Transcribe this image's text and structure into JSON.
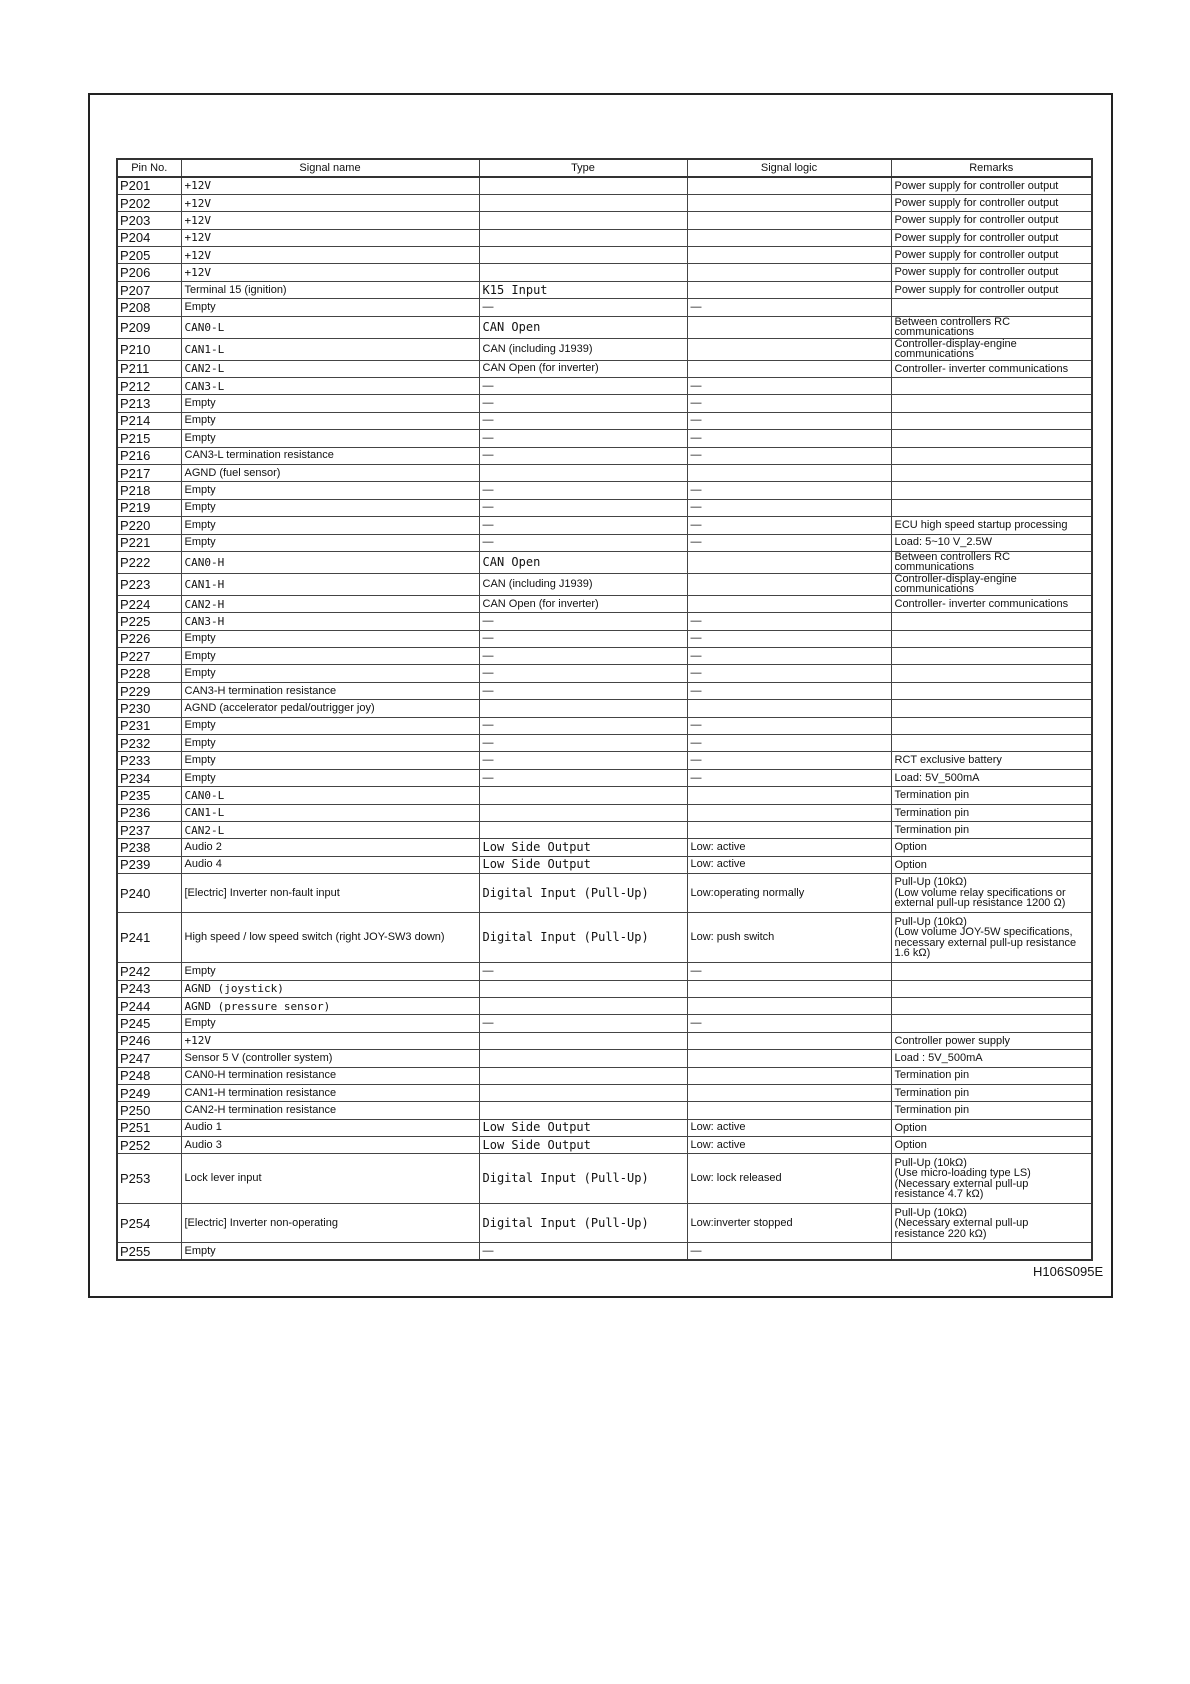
{
  "table": {
    "headers": [
      "Pin No.",
      "Signal name",
      "Type",
      "Signal logic",
      "Remarks"
    ],
    "rows": [
      [
        "P201",
        "+12V",
        "",
        "",
        "Power supply for controller output"
      ],
      [
        "P202",
        "+12V",
        "",
        "",
        "Power supply for controller output"
      ],
      [
        "P203",
        "+12V",
        "",
        "",
        "Power supply for controller output"
      ],
      [
        "P204",
        "+12V",
        "",
        "",
        "Power supply for controller output"
      ],
      [
        "P205",
        "+12V",
        "",
        "",
        "Power supply for controller output"
      ],
      [
        "P206",
        "+12V",
        "",
        "",
        "Power supply for controller output"
      ],
      [
        "P207",
        "Terminal 15 (ignition)",
        "K15 Input",
        "",
        "Power supply for controller output"
      ],
      [
        "P208",
        "Empty",
        "—",
        "—",
        ""
      ],
      [
        "P209",
        "CAN0-L",
        "CAN Open",
        "",
        "Between controllers RC communications"
      ],
      [
        "P210",
        "CAN1-L",
        "CAN (including J1939)",
        "",
        "Controller-display-engine communications"
      ],
      [
        "P211",
        "CAN2-L",
        "CAN Open (for inverter)",
        "",
        "Controller- inverter communications"
      ],
      [
        "P212",
        "CAN3-L",
        "—",
        "—",
        ""
      ],
      [
        "P213",
        "Empty",
        "—",
        "—",
        ""
      ],
      [
        "P214",
        "Empty",
        "—",
        "—",
        ""
      ],
      [
        "P215",
        "Empty",
        "—",
        "—",
        ""
      ],
      [
        "P216",
        "CAN3-L termination resistance",
        "—",
        "—",
        ""
      ],
      [
        "P217",
        "AGND (fuel sensor)",
        "",
        "",
        ""
      ],
      [
        "P218",
        "Empty",
        "—",
        "—",
        ""
      ],
      [
        "P219",
        "Empty",
        "—",
        "—",
        ""
      ],
      [
        "P220",
        "Empty",
        "—",
        "—",
        "ECU high speed startup processing"
      ],
      [
        "P221",
        "Empty",
        "—",
        "—",
        "Load: 5~10 V_2.5W"
      ],
      [
        "P222",
        "CAN0-H",
        "CAN Open",
        "",
        "Between controllers RC communications"
      ],
      [
        "P223",
        "CAN1-H",
        "CAN (including J1939)",
        "",
        "Controller-display-engine communications"
      ],
      [
        "P224",
        "CAN2-H",
        "CAN Open (for inverter)",
        "",
        "Controller- inverter communications"
      ],
      [
        "P225",
        "CAN3-H",
        "—",
        "—",
        ""
      ],
      [
        "P226",
        "Empty",
        "—",
        "—",
        ""
      ],
      [
        "P227",
        "Empty",
        "—",
        "—",
        ""
      ],
      [
        "P228",
        "Empty",
        "—",
        "—",
        ""
      ],
      [
        "P229",
        "CAN3-H termination resistance",
        "—",
        "—",
        ""
      ],
      [
        "P230",
        "AGND (accelerator pedal/outrigger joy)",
        "",
        "",
        ""
      ],
      [
        "P231",
        "Empty",
        "—",
        "—",
        ""
      ],
      [
        "P232",
        "Empty",
        "—",
        "—",
        ""
      ],
      [
        "P233",
        "Empty",
        "—",
        "—",
        "RCT exclusive battery"
      ],
      [
        "P234",
        "Empty",
        "—",
        "—",
        "Load: 5V_500mA"
      ],
      [
        "P235",
        "CAN0-L",
        "",
        "",
        "Termination pin"
      ],
      [
        "P236",
        "CAN1-L",
        "",
        "",
        "Termination pin"
      ],
      [
        "P237",
        "CAN2-L",
        "",
        "",
        "Termination pin"
      ],
      [
        "P238",
        "Audio 2",
        "Low Side Output",
        "Low: active",
        "Option"
      ],
      [
        "P239",
        "Audio 4",
        "Low Side Output",
        "Low: active",
        "Option"
      ],
      [
        "P240",
        "[Electric] Inverter non-fault input",
        "Digital Input (Pull-Up)",
        "Low:operating normally",
        "Pull-Up (10kΩ)\n(Low volume relay specifications or\nexternal pull-up resistance 1200 Ω)"
      ],
      [
        "P241",
        "High speed / low speed switch (right JOY-SW3 down)",
        "Digital Input (Pull-Up)",
        "Low: push switch",
        "Pull-Up (10kΩ)\n(Low volume JOY-5W specifications,\nnecessary external pull-up resistance\n1.6 kΩ)"
      ],
      [
        "P242",
        "Empty",
        "—",
        "—",
        ""
      ],
      [
        "P243",
        "AGND (joystick)",
        "",
        "",
        ""
      ],
      [
        "P244",
        "AGND (pressure sensor)",
        "",
        "",
        ""
      ],
      [
        "P245",
        "Empty",
        "—",
        "—",
        ""
      ],
      [
        "P246",
        "+12V",
        "",
        "",
        "Controller power supply"
      ],
      [
        "P247",
        "Sensor 5 V (controller system)",
        "",
        "",
        "Load : 5V_500mA"
      ],
      [
        "P248",
        "CAN0-H termination resistance",
        "",
        "",
        "Termination pin"
      ],
      [
        "P249",
        "CAN1-H termination resistance",
        "",
        "",
        "Termination pin"
      ],
      [
        "P250",
        "CAN2-H termination resistance",
        "",
        "",
        "Termination pin"
      ],
      [
        "P251",
        "Audio 1",
        "Low Side Output",
        "Low: active",
        "Option"
      ],
      [
        "P252",
        "Audio 3",
        "Low Side Output",
        "Low: active",
        "Option"
      ],
      [
        "P253",
        "Lock lever input",
        "Digital Input (Pull-Up)",
        "Low: lock released",
        "Pull-Up (10kΩ)\n(Use micro-loading type LS)\n(Necessary external pull-up\nresistance 4.7 kΩ)"
      ],
      [
        "P254",
        "[Electric] Inverter non-operating",
        "Digital Input (Pull-Up)",
        "Low:inverter stopped",
        "Pull-Up (10kΩ)\n(Necessary external pull-up\nresistance 220 kΩ)"
      ],
      [
        "P255",
        "Empty",
        "—",
        "—",
        ""
      ]
    ]
  },
  "figure_code": "H106S095E"
}
